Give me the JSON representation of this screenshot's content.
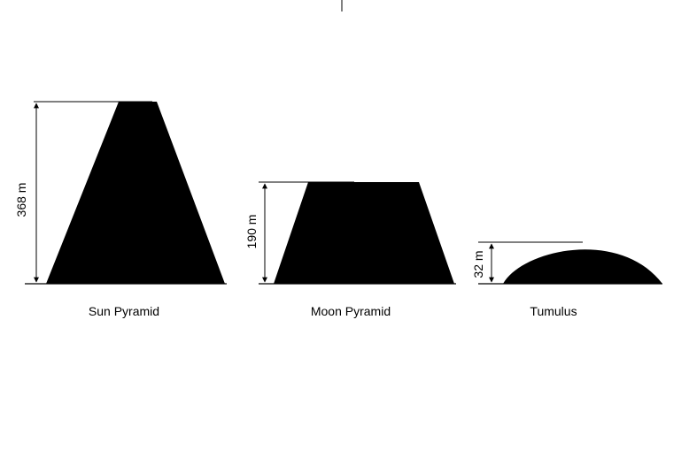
{
  "colors": {
    "fill": "#000000",
    "line": "#000000",
    "background": "#ffffff"
  },
  "structures": [
    {
      "name": "Sun Pyramid",
      "height_label": "368 m"
    },
    {
      "name": "Moon Pyramid",
      "height_label": "190 m"
    },
    {
      "name": "Tumulus",
      "height_label": "32 m"
    }
  ]
}
